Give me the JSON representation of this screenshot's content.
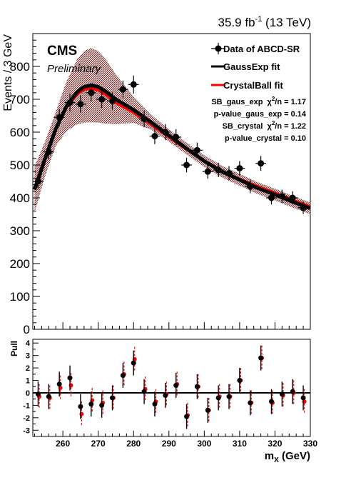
{
  "header": {
    "lumi": "35.9 fb",
    "lumi_exp": "-1",
    "energy": " (13 TeV)",
    "experiment": "CMS",
    "status": "Preliminary"
  },
  "legend": {
    "data": "Data of ABCD-SR",
    "gauss": "GaussExp fit",
    "crystal": "CrystalBall fit"
  },
  "stats": {
    "line1_prefix": "SB_gaus_exp",
    "line1_chi": "χ",
    "line1_sup": "2",
    "line1_suffix": "/n = 1.17",
    "line2": "p-value_gaus_exp = 0.14",
    "line3_prefix": "SB_crystal",
    "line3_chi": "χ",
    "line3_sup": "2",
    "line3_suffix": "/n = 1.22",
    "line4": "p-value_crystal = 0.10"
  },
  "chart_data": [
    {
      "type": "scatter",
      "ylabel": "Events / 3 GeV",
      "xlim": [
        251.5,
        330
      ],
      "ylim": [
        0,
        900
      ],
      "y_ticks": [
        0,
        100,
        200,
        300,
        400,
        500,
        600,
        700,
        800
      ],
      "series": [
        {
          "name": "Data of ABCD-SR",
          "color": "#000000",
          "x": [
            253,
            256,
            259,
            262,
            265,
            268,
            271,
            274,
            277,
            280,
            283,
            286,
            289,
            292,
            295,
            298,
            301,
            304,
            307,
            310,
            313,
            316,
            319,
            322,
            325,
            328
          ],
          "y": [
            450,
            540,
            645,
            690,
            685,
            720,
            700,
            695,
            730,
            745,
            640,
            588,
            600,
            585,
            500,
            545,
            480,
            485,
            475,
            490,
            435,
            505,
            400,
            405,
            400,
            370
          ]
        },
        {
          "name": "GaussExp fit",
          "color": "#000000",
          "x": [
            252,
            255,
            258,
            261,
            264,
            266,
            268,
            270,
            272,
            275,
            280,
            285,
            290,
            295,
            300,
            305,
            310,
            315,
            320,
            325,
            330
          ],
          "y": [
            425,
            520,
            610,
            678,
            722,
            738,
            743,
            738,
            725,
            700,
            668,
            630,
            590,
            550,
            512,
            480,
            455,
            430,
            410,
            388,
            368
          ]
        },
        {
          "name": "CrystalBall fit",
          "color": "#ff0000",
          "x": [
            252,
            255,
            258,
            261,
            264,
            266,
            268,
            270,
            272,
            275,
            280,
            285,
            290,
            295,
            300,
            305,
            310,
            315,
            320,
            325,
            330
          ],
          "y": [
            430,
            525,
            612,
            675,
            715,
            730,
            733,
            728,
            715,
            690,
            660,
            623,
            585,
            548,
            512,
            482,
            457,
            435,
            415,
            393,
            373
          ]
        }
      ]
    },
    {
      "type": "scatter",
      "ylabel": "Pull",
      "xlabel": "m",
      "xlabel_sub": "X",
      "xlabel_unit": " (GeV)",
      "xlim": [
        251.5,
        330
      ],
      "ylim": [
        -3.5,
        4.3
      ],
      "x_ticks": [
        260,
        270,
        280,
        290,
        300,
        310,
        320,
        330
      ],
      "y_ticks": [
        -3,
        -2,
        -1,
        0,
        1,
        2,
        3,
        4
      ],
      "series": [
        {
          "name": "GaussExp",
          "color": "#000000",
          "x": [
            253,
            256,
            259,
            262,
            265,
            268,
            271,
            274,
            277,
            280,
            283,
            286,
            289,
            292,
            295,
            298,
            301,
            304,
            307,
            310,
            313,
            316,
            319,
            322,
            325,
            328
          ],
          "y": [
            -0.1,
            -0.3,
            0.7,
            1.2,
            -1.1,
            -0.9,
            -1.0,
            -0.4,
            1.4,
            2.4,
            0.1,
            -0.9,
            -0.2,
            0.6,
            -1.9,
            0.5,
            -1.4,
            -0.4,
            -0.3,
            1.0,
            -0.8,
            2.8,
            -0.7,
            -0.1,
            0.1,
            -0.4
          ]
        },
        {
          "name": "CrystalBall",
          "color": "#ff0000",
          "x": [
            253,
            256,
            259,
            262,
            265,
            268,
            271,
            274,
            277,
            280,
            283,
            286,
            289,
            292,
            295,
            298,
            301,
            304,
            307,
            310,
            313,
            316,
            319,
            322,
            325,
            328
          ],
          "y": [
            -0.3,
            -0.4,
            0.4,
            0.6,
            -1.7,
            -0.6,
            -0.8,
            -0.4,
            1.5,
            2.7,
            0.3,
            -0.7,
            -0.1,
            0.7,
            -1.8,
            0.5,
            -1.4,
            -0.3,
            -0.3,
            1.0,
            -0.8,
            2.8,
            -0.8,
            -0.2,
            0.0,
            -0.7
          ]
        }
      ]
    }
  ]
}
